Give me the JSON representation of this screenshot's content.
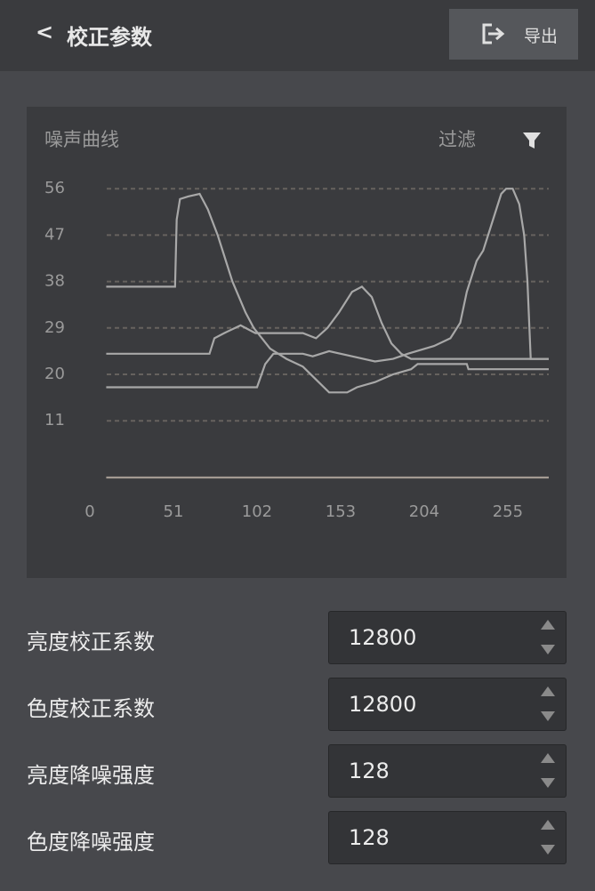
{
  "header": {
    "title": "校正参数",
    "export_label": "导出"
  },
  "chart_data": {
    "type": "line",
    "title": "噪声曲线",
    "filter_label": "过滤",
    "xlim": [
      0,
      280
    ],
    "xticks": [
      0,
      51,
      102,
      153,
      204,
      255
    ],
    "ylim": [
      0,
      58
    ],
    "yticks": [
      11,
      20,
      29,
      38,
      47,
      56
    ],
    "grid": true,
    "series": [
      {
        "color": "#a8a8a8",
        "x": [
          10,
          52,
          53,
          55,
          60,
          67,
          72,
          78,
          87,
          95,
          100,
          110,
          120,
          130,
          138,
          146,
          157,
          163,
          174,
          185,
          196,
          200,
          230,
          231,
          280
        ],
        "values": [
          37,
          37,
          50,
          54,
          54.5,
          55,
          52,
          47,
          38,
          32,
          29,
          25,
          23,
          21.5,
          19,
          16.5,
          16.5,
          17.5,
          18.5,
          20,
          21,
          22,
          22,
          21,
          21
        ]
      },
      {
        "color": "#a8a8a8",
        "x": [
          10,
          73,
          76,
          82,
          92,
          101,
          115,
          130,
          138,
          145,
          152,
          160,
          166,
          172,
          178,
          184,
          190,
          196,
          280
        ],
        "values": [
          24,
          24,
          27,
          28,
          29.5,
          28,
          28,
          28,
          27,
          29,
          32,
          36,
          37,
          35,
          30,
          26,
          24,
          23,
          23
        ]
      },
      {
        "color": "#a8a8a8",
        "x": [
          10,
          102,
          107,
          112,
          130,
          136,
          146,
          160,
          174,
          185,
          194,
          210,
          220,
          226,
          230,
          236,
          240,
          246,
          251,
          254,
          258,
          262,
          265,
          267,
          269,
          280
        ],
        "values": [
          17.5,
          17.5,
          22,
          24,
          24,
          23.5,
          24.5,
          23.5,
          22.5,
          23,
          24,
          25.5,
          27,
          30,
          36,
          42,
          44,
          50,
          55,
          56,
          56,
          53,
          47,
          38,
          23,
          23
        ]
      },
      {
        "color": "#a39a92",
        "x": [
          10,
          280
        ],
        "values": [
          0,
          0
        ]
      }
    ]
  },
  "fields": [
    {
      "label": "亮度校正系数",
      "value": 12800
    },
    {
      "label": "色度校正系数",
      "value": 12800
    },
    {
      "label": "亮度降噪强度",
      "value": 128
    },
    {
      "label": "色度降噪强度",
      "value": 128
    }
  ]
}
